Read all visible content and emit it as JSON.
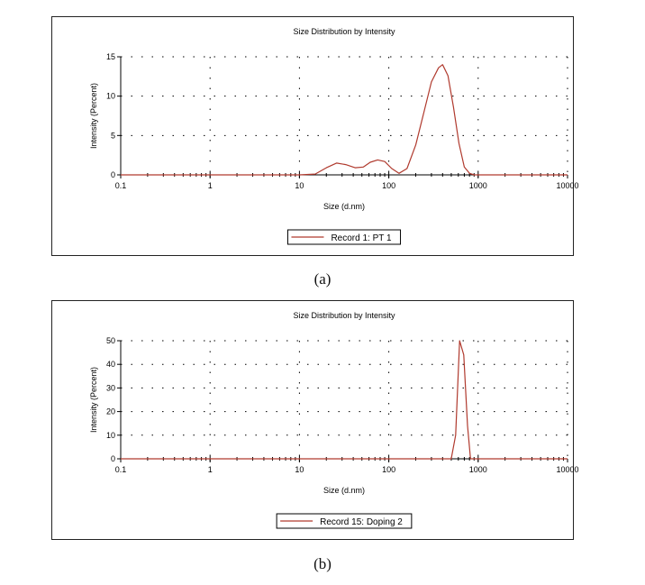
{
  "colors": {
    "series": "#b03a2e",
    "axis": "#000000",
    "grid": "#000000"
  },
  "chart_data": [
    {
      "type": "line",
      "title": "Size Distribution by Intensity",
      "xlabel": "Size (d.nm)",
      "ylabel": "Intensity (Percent)",
      "xscale": "log",
      "xlim": [
        0.1,
        10000
      ],
      "ylim": [
        0,
        15
      ],
      "xticks": [
        "0.1",
        "1",
        "10",
        "100",
        "1000",
        "10000"
      ],
      "yticks": [
        "0",
        "5",
        "10",
        "15"
      ],
      "grid": true,
      "legend": "bottom-center",
      "series": [
        {
          "name": "Record 1: PT 1",
          "x": [
            0.1,
            10,
            15,
            20,
            26,
            33,
            42,
            52,
            62,
            75,
            90,
            108,
            130,
            160,
            200,
            250,
            300,
            360,
            400,
            460,
            530,
            610,
            700,
            800,
            900,
            10000
          ],
          "y": [
            0,
            0,
            0.1,
            0.9,
            1.5,
            1.3,
            0.9,
            1.0,
            1.6,
            1.9,
            1.7,
            0.8,
            0.2,
            0.8,
            3.8,
            8.2,
            11.8,
            13.6,
            14.0,
            12.6,
            8.6,
            4.0,
            1.0,
            0.2,
            0,
            0
          ]
        }
      ],
      "caption": "(a)"
    },
    {
      "type": "line",
      "title": "Size Distribution by Intensity",
      "xlabel": "Size (d.nm)",
      "ylabel": "Intensity (Percent)",
      "xscale": "log",
      "xlim": [
        0.1,
        10000
      ],
      "ylim": [
        0,
        50
      ],
      "xticks": [
        "0.1",
        "1",
        "10",
        "100",
        "1000",
        "10000"
      ],
      "yticks": [
        "0",
        "10",
        "20",
        "30",
        "40",
        "50"
      ],
      "grid": true,
      "legend": "bottom-center",
      "series": [
        {
          "name": "Record 15: Doping 2",
          "x": [
            0.1,
            500,
            560,
            620,
            690,
            760,
            820,
            10000
          ],
          "y": [
            0,
            0,
            10,
            50,
            44,
            14,
            0,
            0
          ]
        }
      ],
      "caption": "(b)"
    }
  ]
}
